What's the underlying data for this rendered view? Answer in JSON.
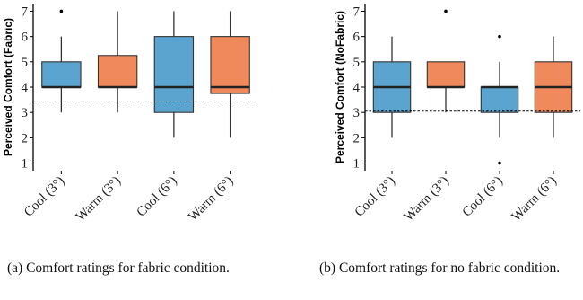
{
  "chart_data": [
    {
      "type": "box",
      "panel": "(a)",
      "ylabel": "Perceived Comfort (Fabric)",
      "ylim": [
        0.7,
        7.3
      ],
      "yticks": [
        1,
        2,
        3,
        4,
        5,
        6,
        7
      ],
      "categories": [
        "Cool (3°)",
        "Warm (3°)",
        "Cool (6°)",
        "Warm (6°)"
      ],
      "boxes": [
        {
          "min": 3,
          "q1": 4,
          "median": 4,
          "q3": 5,
          "max": 6,
          "outliers": [
            7
          ],
          "color": "#5BA4CF"
        },
        {
          "min": 3,
          "q1": 4,
          "median": 4,
          "q3": 5.25,
          "max": 7,
          "outliers": [],
          "color": "#F08A5D"
        },
        {
          "min": 2,
          "q1": 3,
          "median": 4,
          "q3": 6,
          "max": 7,
          "outliers": [],
          "color": "#5BA4CF"
        },
        {
          "min": 2,
          "q1": 3.75,
          "median": 4,
          "q3": 6,
          "max": 7,
          "outliers": [],
          "color": "#F08A5D"
        }
      ],
      "reference_line": 3.45,
      "grid": false,
      "caption": "(a) Comfort ratings for fabric condition."
    },
    {
      "type": "box",
      "panel": "(b)",
      "ylabel": "Perceived Comfort (NoFabric)",
      "ylim": [
        0.7,
        7.3
      ],
      "yticks": [
        1,
        2,
        3,
        4,
        5,
        6,
        7
      ],
      "categories": [
        "Cool (3°)",
        "Warm (3°)",
        "Cool (6°)",
        "Warm (6°)"
      ],
      "boxes": [
        {
          "min": 2,
          "q1": 3,
          "median": 4,
          "q3": 5,
          "max": 6,
          "outliers": [],
          "color": "#5BA4CF"
        },
        {
          "min": 3,
          "q1": 4,
          "median": 4,
          "q3": 5,
          "max": 5,
          "outliers": [
            7
          ],
          "color": "#F08A5D"
        },
        {
          "min": 2,
          "q1": 3,
          "median": 4,
          "q3": 4,
          "max": 5,
          "outliers": [
            1,
            6
          ],
          "color": "#5BA4CF"
        },
        {
          "min": 2,
          "q1": 3,
          "median": 4,
          "q3": 5,
          "max": 6,
          "outliers": [],
          "color": "#F08A5D"
        }
      ],
      "reference_line": 3.05,
      "grid": false,
      "caption": "(b) Comfort ratings for no fabric condition."
    }
  ]
}
